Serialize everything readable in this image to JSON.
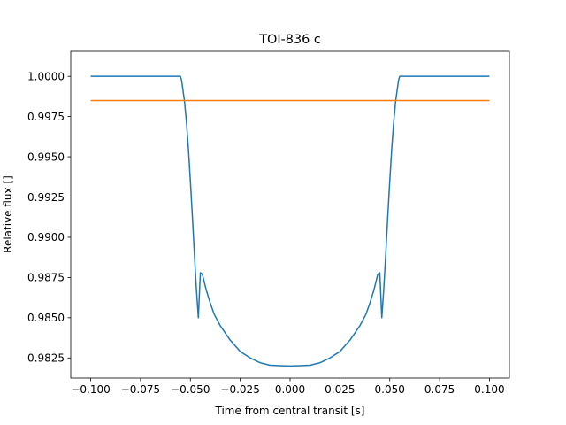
{
  "chart_data": {
    "type": "line",
    "title": "TOI-836 c",
    "xlabel": "Time from central transit [s]",
    "ylabel": "Relative flux []",
    "xlim": [
      -0.11,
      0.11
    ],
    "ylim": [
      0.98125,
      1.00155
    ],
    "grid": false,
    "x_ticks": [
      -0.1,
      -0.075,
      -0.05,
      -0.025,
      0.0,
      0.025,
      0.05,
      0.075,
      0.1
    ],
    "x_tick_labels": [
      "−0.100",
      "−0.075",
      "−0.050",
      "−0.025",
      "0.000",
      "0.025",
      "0.050",
      "0.075",
      "0.100"
    ],
    "y_ticks": [
      0.9825,
      0.985,
      0.9875,
      0.99,
      0.9925,
      0.995,
      0.9975,
      1.0
    ],
    "y_tick_labels": [
      "0.9825",
      "0.9850",
      "0.9875",
      "0.9900",
      "0.9925",
      "0.9950",
      "0.9975",
      "1.0000"
    ],
    "series": [
      {
        "color": "#1f77b4",
        "x": [
          -0.1,
          -0.08,
          -0.06,
          -0.055,
          -0.0545,
          -0.054,
          -0.053,
          -0.052,
          -0.051,
          -0.05,
          -0.049,
          -0.048,
          -0.047,
          -0.046,
          -0.045,
          -0.044,
          -0.042,
          -0.04,
          -0.038,
          -0.035,
          -0.03,
          -0.025,
          -0.02,
          -0.015,
          -0.01,
          -0.005,
          0.0,
          0.005,
          0.01,
          0.015,
          0.02,
          0.025,
          0.03,
          0.035,
          0.038,
          0.04,
          0.042,
          0.044,
          0.045,
          0.046,
          0.047,
          0.048,
          0.049,
          0.05,
          0.051,
          0.052,
          0.053,
          0.054,
          0.0545,
          0.055,
          0.06,
          0.08,
          0.1
        ],
        "y": [
          1.0,
          1.0,
          1.0,
          1.0,
          0.9998,
          0.9994,
          0.9985,
          0.9972,
          0.9955,
          0.9935,
          0.9913,
          0.989,
          0.9868,
          0.985,
          0.9878,
          0.9877,
          0.9867,
          0.9859,
          0.9852,
          0.9845,
          0.9836,
          0.9829,
          0.9825,
          0.9822,
          0.98205,
          0.98202,
          0.982,
          0.98202,
          0.98205,
          0.9822,
          0.9825,
          0.9829,
          0.9836,
          0.9845,
          0.9852,
          0.9859,
          0.9867,
          0.9877,
          0.9878,
          0.985,
          0.9868,
          0.989,
          0.9913,
          0.9935,
          0.9955,
          0.9972,
          0.9985,
          0.9994,
          0.9998,
          1.0,
          1.0,
          1.0,
          1.0
        ]
      },
      {
        "color": "#ff7f0e",
        "x": [
          -0.1,
          0.1
        ],
        "y": [
          0.9985,
          0.9985
        ]
      }
    ]
  }
}
